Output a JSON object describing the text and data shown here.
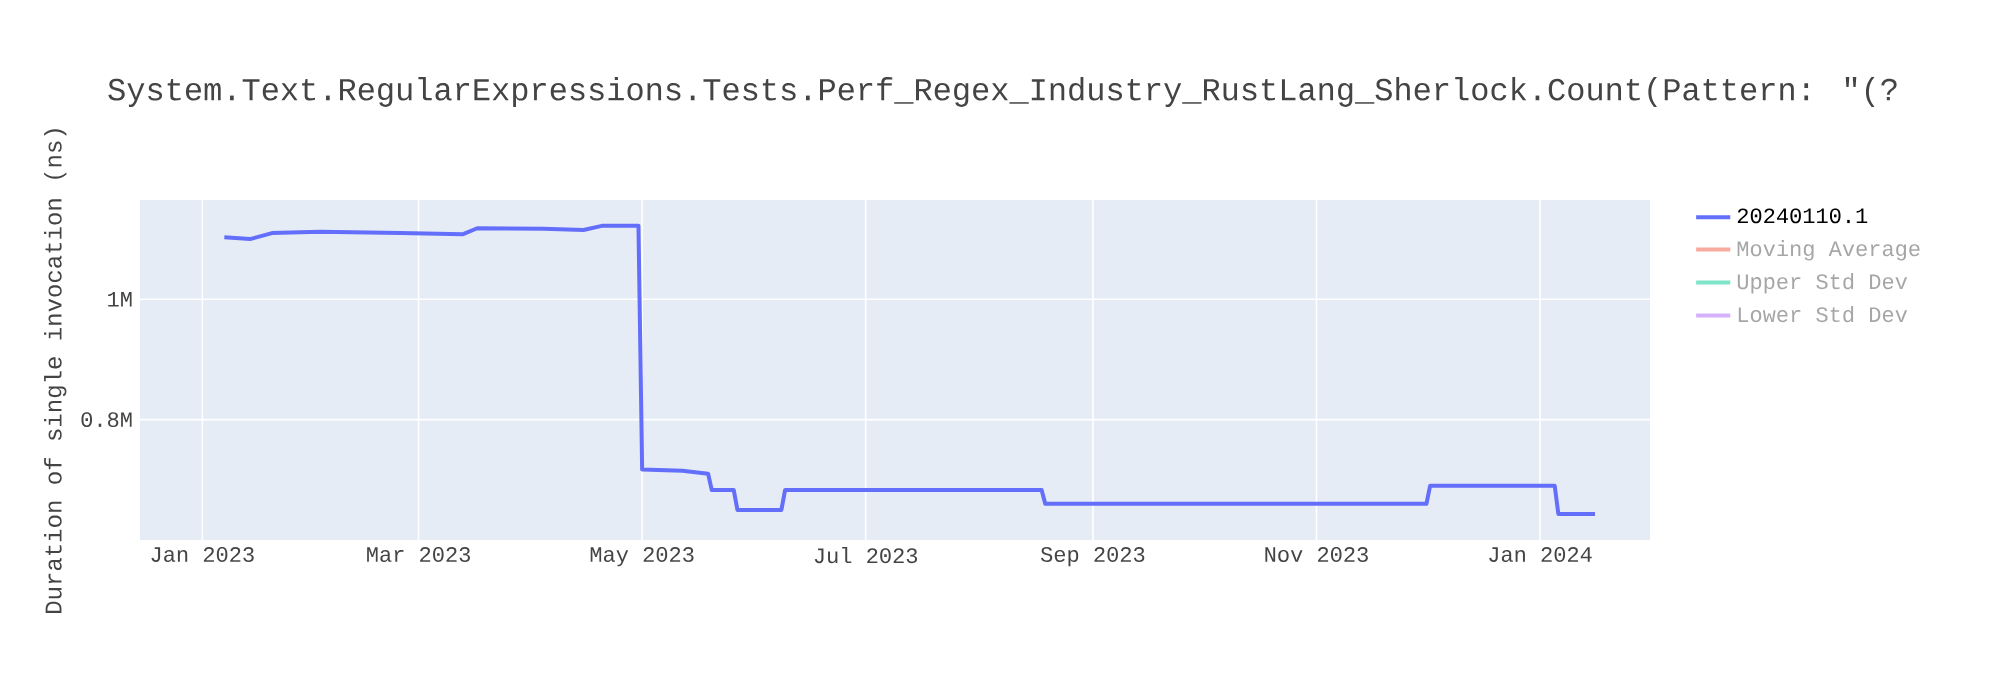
{
  "chart_data": {
    "type": "line",
    "title": "System.Text.RegularExpressions.Tests.Perf_Regex_Industry_RustLang_Sherlock.Count(Pattern: \"(?",
    "ylabel": "Duration of single invocation (ns)",
    "xlim": [
      "2022-12-15",
      "2024-01-31"
    ],
    "xticks": [
      {
        "value": "2023-01-01",
        "label": "Jan 2023"
      },
      {
        "value": "2023-03-01",
        "label": "Mar 2023"
      },
      {
        "value": "2023-05-01",
        "label": "May 2023"
      },
      {
        "value": "2023-07-01",
        "label": "Jul 2023"
      },
      {
        "value": "2023-09-01",
        "label": "Sep 2023"
      },
      {
        "value": "2023-11-01",
        "label": "Nov 2023"
      },
      {
        "value": "2024-01-01",
        "label": "Jan 2024"
      }
    ],
    "ylim": [
      600000,
      1165000
    ],
    "yticks": [
      {
        "value": 800000,
        "label": "0.8M"
      },
      {
        "value": 1000000,
        "label": "1M"
      }
    ],
    "grid": true,
    "legend": "top right",
    "marker": "none",
    "line_style": "solid",
    "series": [
      {
        "name": "20240110.1",
        "color": "#636efa",
        "x": [
          "2023-01-07",
          "2023-01-14",
          "2023-01-20",
          "2023-02-02",
          "2023-02-24",
          "2023-03-13",
          "2023-03-17",
          "2023-04-04",
          "2023-04-15",
          "2023-04-20",
          "2023-04-30",
          "2023-05-01",
          "2023-05-12",
          "2023-05-19",
          "2023-05-20",
          "2023-05-26",
          "2023-05-27",
          "2023-06-08",
          "2023-06-09",
          "2023-08-18",
          "2023-08-19",
          "2023-10-19",
          "2023-12-01",
          "2023-12-02",
          "2024-01-05",
          "2024-01-06",
          "2024-01-16"
        ],
        "values": [
          1103000,
          1100000,
          1110000,
          1112000,
          1110000,
          1108000,
          1118000,
          1117000,
          1115000,
          1122000,
          1122000,
          717000,
          715000,
          710000,
          683000,
          683000,
          650000,
          650000,
          683000,
          683000,
          660000,
          660000,
          660000,
          690000,
          690000,
          643000,
          643000
        ]
      },
      {
        "name": "Moving Average",
        "color": "#ef553b"
      },
      {
        "name": "Upper Std Dev",
        "color": "#00cc96"
      },
      {
        "name": "Lower Std Dev",
        "color": "#ab63fa"
      }
    ]
  }
}
